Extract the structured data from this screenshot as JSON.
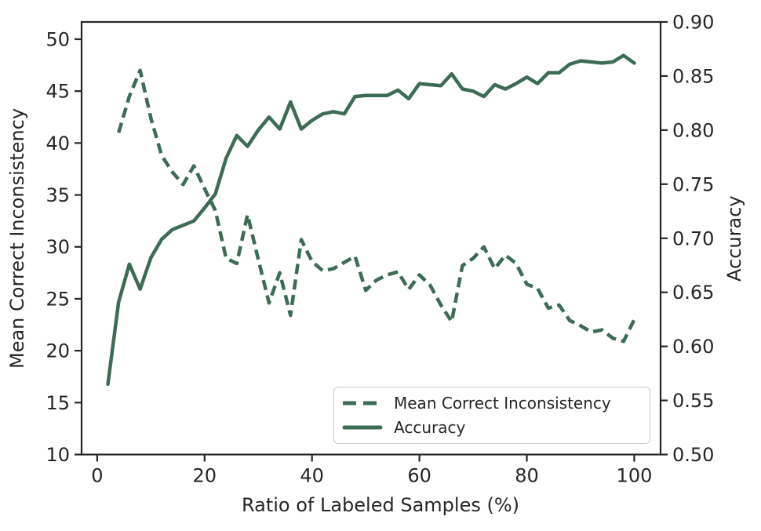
{
  "figure": {
    "xlabel": "Ratio of Labeled Samples (%)",
    "ylabel_left": "Mean Correct Inconsistency",
    "ylabel_right": "Accuracy"
  },
  "legend": {
    "items": [
      {
        "label": "Mean Correct Inconsistency",
        "style": "dashed"
      },
      {
        "label": "Accuracy",
        "style": "solid"
      }
    ]
  },
  "colors": {
    "line": "#3d6c55",
    "text": "#262626",
    "spine": "#262626",
    "legend_border": "#cccccc",
    "background": "#ffffff"
  },
  "chart_data": {
    "type": "line",
    "title": "",
    "xlabel": "Ratio of Labeled Samples (%)",
    "grid": false,
    "legend_position": "lower right",
    "x_axis": {
      "ticks": [
        0,
        20,
        40,
        60,
        80,
        100
      ],
      "lim": [
        -2.9,
        104.9
      ]
    },
    "left_axis": {
      "label": "Mean Correct Inconsistency",
      "ticks": [
        10,
        15,
        20,
        25,
        30,
        35,
        40,
        45,
        50
      ],
      "lim": [
        10,
        51.66
      ]
    },
    "right_axis": {
      "label": "Accuracy",
      "ticks": [
        0.5,
        0.55,
        0.6,
        0.65,
        0.7,
        0.75,
        0.8,
        0.85,
        0.9
      ],
      "tick_decimals": 2,
      "lim": [
        0.5,
        0.9
      ]
    },
    "series": [
      {
        "name": "Mean Correct Inconsistency",
        "axis": "left",
        "style": "dashed",
        "x": [
          4,
          6,
          8,
          10,
          12,
          14,
          16,
          18,
          20,
          22,
          24,
          26,
          28,
          30,
          32,
          34,
          36,
          38,
          40,
          42,
          44,
          46,
          48,
          50,
          52,
          54,
          56,
          58,
          60,
          62,
          64,
          66,
          68,
          70,
          72,
          74,
          76,
          78,
          80,
          82,
          84,
          86,
          88,
          90,
          92,
          94,
          96,
          98,
          100
        ],
        "y": [
          41.0,
          44.5,
          47.0,
          42.4,
          38.8,
          37.2,
          36.0,
          37.8,
          35.6,
          33.5,
          28.9,
          28.4,
          33.1,
          28.8,
          24.6,
          27.5,
          23.4,
          30.7,
          28.6,
          27.7,
          27.9,
          28.5,
          29.1,
          25.8,
          26.8,
          27.3,
          27.6,
          25.9,
          27.3,
          26.3,
          24.4,
          22.8,
          28.2,
          28.9,
          30.0,
          27.9,
          29.2,
          28.4,
          26.4,
          26.0,
          24.1,
          24.4,
          22.9,
          22.4,
          21.8,
          22.0,
          21.2,
          20.9,
          23.0
        ]
      },
      {
        "name": "Accuracy",
        "axis": "right",
        "style": "solid",
        "x": [
          2,
          4,
          6,
          8,
          10,
          12,
          14,
          16,
          18,
          20,
          22,
          24,
          26,
          28,
          30,
          32,
          34,
          36,
          38,
          40,
          42,
          44,
          46,
          48,
          50,
          52,
          54,
          56,
          58,
          60,
          62,
          64,
          66,
          68,
          70,
          72,
          74,
          76,
          78,
          80,
          82,
          84,
          86,
          88,
          90,
          92,
          94,
          96,
          98,
          100
        ],
        "y": [
          0.565,
          0.641,
          0.676,
          0.653,
          0.682,
          0.699,
          0.708,
          0.712,
          0.716,
          0.728,
          0.741,
          0.774,
          0.795,
          0.785,
          0.8,
          0.812,
          0.801,
          0.826,
          0.801,
          0.809,
          0.815,
          0.817,
          0.815,
          0.831,
          0.832,
          0.832,
          0.832,
          0.837,
          0.829,
          0.843,
          0.842,
          0.841,
          0.852,
          0.838,
          0.836,
          0.831,
          0.842,
          0.838,
          0.843,
          0.849,
          0.843,
          0.853,
          0.853,
          0.861,
          0.864,
          0.863,
          0.862,
          0.863,
          0.869,
          0.862
        ]
      }
    ]
  }
}
